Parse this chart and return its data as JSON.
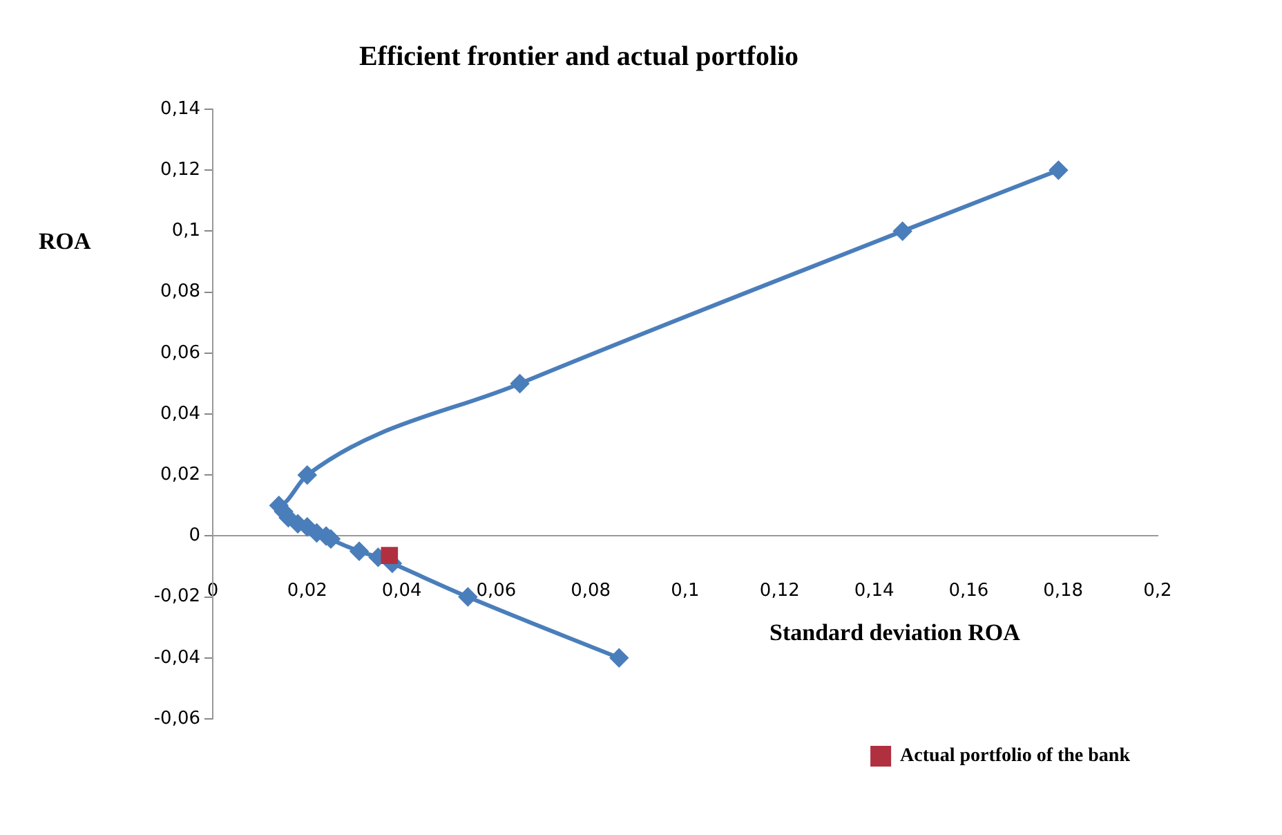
{
  "chart_data": {
    "type": "line",
    "title": "Efficient frontier and actual portfolio",
    "xlabel": "Standard deviation ROA",
    "ylabel": "ROA",
    "xlim": [
      0,
      0.2
    ],
    "xticks": [
      0,
      {
        "value": 0.02,
        "label": "0,02"
      },
      {
        "value": 0.04,
        "label": "0,04"
      },
      {
        "value": 0.06,
        "label": "0,06"
      },
      {
        "value": 0.08,
        "label": "0,08"
      },
      {
        "value": 0.1,
        "label": "0,1"
      },
      {
        "value": 0.12,
        "label": "0,12"
      },
      {
        "value": 0.14,
        "label": "0,14"
      },
      {
        "value": 0.16,
        "label": "0,16"
      },
      {
        "value": 0.18,
        "label": "0,18"
      },
      {
        "value": 0.2,
        "label": "0,2"
      }
    ],
    "ylim": [
      -0.06,
      0.14
    ],
    "yticks": [
      {
        "value": -0.06,
        "label": "-0,06"
      },
      {
        "value": -0.04,
        "label": "-0,04"
      },
      {
        "value": -0.02,
        "label": "-0,02"
      },
      0,
      {
        "value": 0.02,
        "label": "0,02"
      },
      {
        "value": 0.04,
        "label": "0,04"
      },
      {
        "value": 0.06,
        "label": "0,06"
      },
      {
        "value": 0.08,
        "label": "0,08"
      },
      {
        "value": 0.1,
        "label": "0,1"
      },
      {
        "value": 0.12,
        "label": "0,12"
      },
      {
        "value": 0.14,
        "label": "0,14"
      }
    ],
    "grid": false,
    "legend": "bottom right",
    "line_style": "solid",
    "series": [
      {
        "marker": "diamond",
        "color": "#4a7ebb",
        "x": [
          0.179,
          0.146,
          0.065,
          0.02,
          0.014,
          0.015,
          0.016,
          0.018,
          0.02,
          0.022,
          0.024,
          0.025,
          0.031,
          0.035,
          0.038,
          0.054,
          0.086
        ],
        "values": [
          0.12,
          0.1,
          0.05,
          0.02,
          0.01,
          0.008,
          0.006,
          0.004,
          0.003,
          0.001,
          0,
          -0.001,
          -0.005,
          -0.007,
          -0.009,
          -0.02,
          -0.04
        ]
      },
      {
        "type": "scatter",
        "marker": "square",
        "name": "Actual portfolio of the bank",
        "color": "#b03040",
        "x": [
          0.0374
        ],
        "values": [
          -0.0064
        ]
      }
    ]
  }
}
